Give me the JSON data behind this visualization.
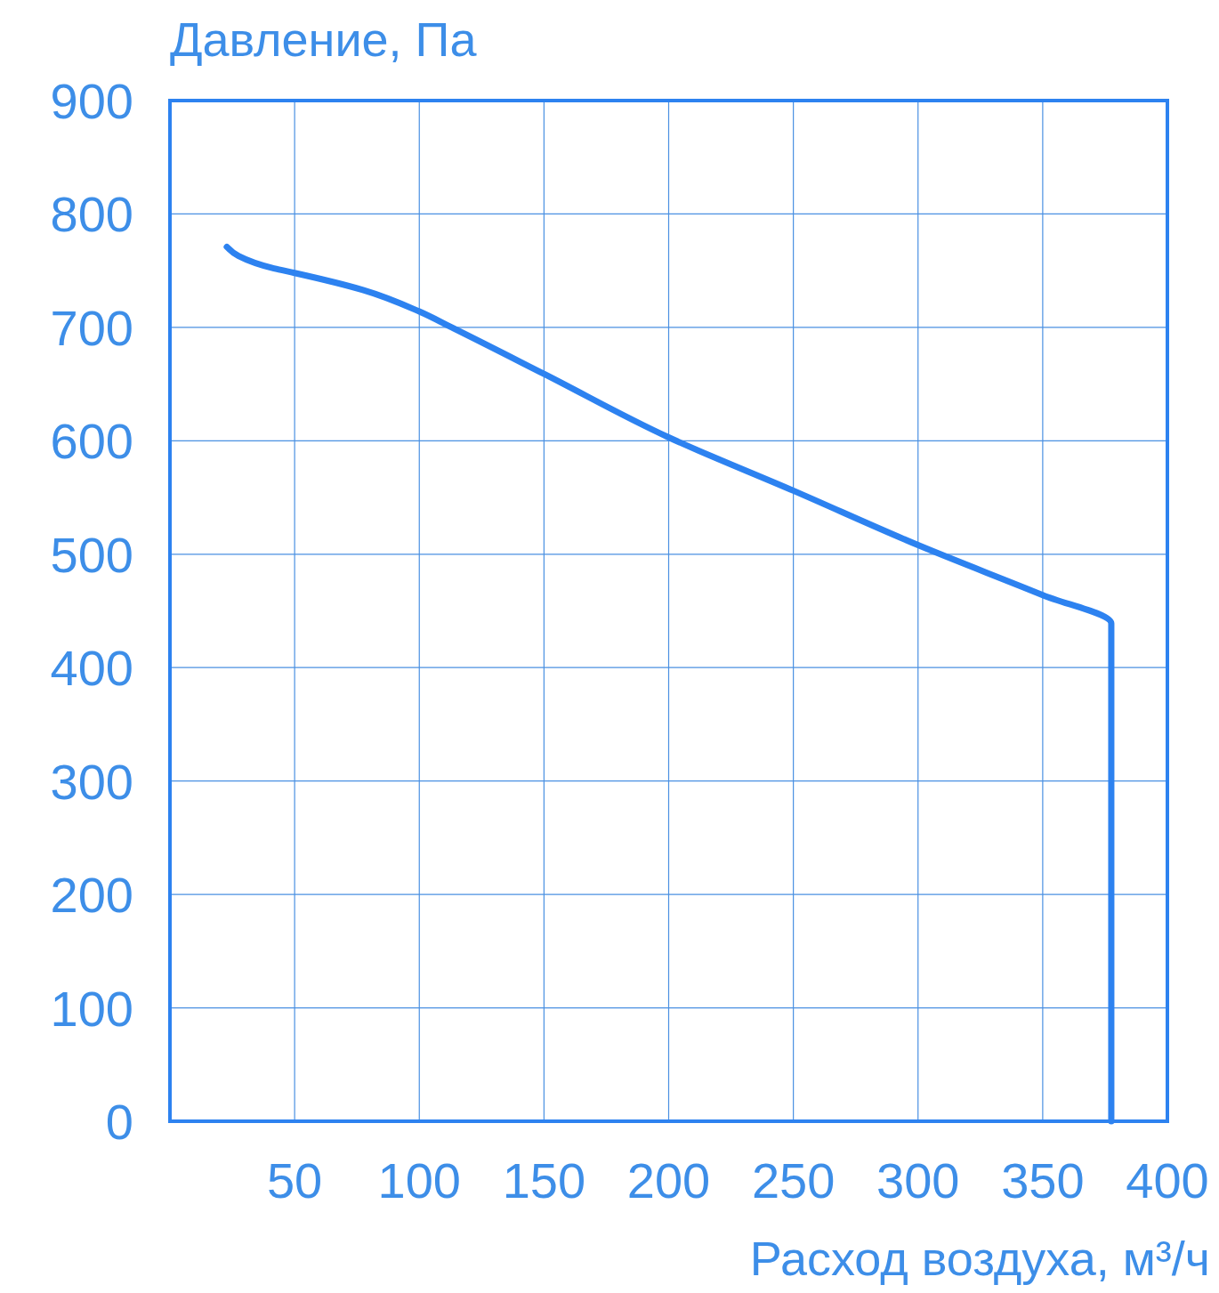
{
  "chart_data": {
    "type": "line",
    "xlabel": "Расход воздуха, м³/ч",
    "ylabel": "Давление, Па",
    "xlim": [
      0,
      400
    ],
    "xticks": [
      {
        "value": 0,
        "label": null
      },
      50,
      100,
      150,
      200,
      250,
      300,
      350,
      400
    ],
    "ylim": [
      0,
      900
    ],
    "yticks": [
      0,
      100,
      200,
      300,
      400,
      500,
      600,
      700,
      800,
      900
    ],
    "grid": true,
    "series": [
      {
        "color": "#2d82f0",
        "x": [
          22.8,
          27.5,
          41.7,
          50,
          77.4,
          100,
          113,
          150,
          200,
          250,
          300,
          350,
          377.5,
          377.5,
          377.5
        ],
        "values": [
          771,
          763,
          752,
          748,
          733,
          714,
          700,
          659,
          603,
          556,
          508,
          464,
          439,
          400,
          0
        ]
      }
    ]
  }
}
